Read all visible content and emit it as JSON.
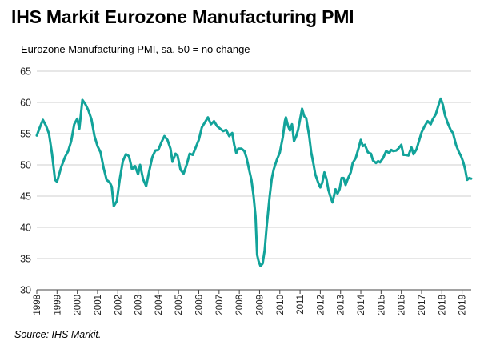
{
  "title": "IHS Markit Eurozone Manufacturing PMI",
  "subtitle": "Eurozone Manufacturing PMI, sa, 50 = no change",
  "source": "Source: IHS Markit.",
  "chart_data": {
    "type": "line",
    "title": "IHS Markit Eurozone Manufacturing PMI",
    "subtitle": "Eurozone Manufacturing PMI, sa, 50 = no change",
    "xlabel": "",
    "ylabel": "",
    "xlim": [
      1998.0,
      2019.45
    ],
    "ylim": [
      30,
      65
    ],
    "yticks": [
      30,
      35,
      40,
      45,
      50,
      55,
      60,
      65
    ],
    "xticks": [
      "1998",
      "1999",
      "2000",
      "2001",
      "2002",
      "2003",
      "2004",
      "2005",
      "2006",
      "2007",
      "2008",
      "2009",
      "2010",
      "2011",
      "2012",
      "2013",
      "2014",
      "2015",
      "2016",
      "2017",
      "2018",
      "2019"
    ],
    "grid": "horizontal",
    "line_color": "#12a39a",
    "series": [
      {
        "name": "",
        "points": [
          [
            1998.0,
            54.7
          ],
          [
            1998.15,
            56.0
          ],
          [
            1998.3,
            57.2
          ],
          [
            1998.45,
            56.3
          ],
          [
            1998.6,
            55.0
          ],
          [
            1998.75,
            51.8
          ],
          [
            1998.9,
            47.6
          ],
          [
            1999.0,
            47.3
          ],
          [
            1999.2,
            49.6
          ],
          [
            1999.4,
            51.3
          ],
          [
            1999.55,
            52.2
          ],
          [
            1999.7,
            53.8
          ],
          [
            1999.85,
            56.5
          ],
          [
            2000.0,
            57.4
          ],
          [
            2000.1,
            55.8
          ],
          [
            2000.25,
            60.4
          ],
          [
            2000.4,
            59.7
          ],
          [
            2000.55,
            58.7
          ],
          [
            2000.7,
            57.3
          ],
          [
            2000.85,
            54.6
          ],
          [
            2001.0,
            53.0
          ],
          [
            2001.15,
            52.0
          ],
          [
            2001.3,
            49.5
          ],
          [
            2001.45,
            47.6
          ],
          [
            2001.6,
            47.2
          ],
          [
            2001.7,
            46.5
          ],
          [
            2001.8,
            43.4
          ],
          [
            2001.95,
            44.2
          ],
          [
            2002.1,
            47.8
          ],
          [
            2002.25,
            50.6
          ],
          [
            2002.4,
            51.7
          ],
          [
            2002.55,
            51.4
          ],
          [
            2002.7,
            49.3
          ],
          [
            2002.85,
            49.8
          ],
          [
            2003.0,
            48.5
          ],
          [
            2003.1,
            50.0
          ],
          [
            2003.25,
            47.7
          ],
          [
            2003.4,
            46.6
          ],
          [
            2003.55,
            49.0
          ],
          [
            2003.7,
            51.2
          ],
          [
            2003.85,
            52.3
          ],
          [
            2004.0,
            52.4
          ],
          [
            2004.15,
            53.6
          ],
          [
            2004.3,
            54.6
          ],
          [
            2004.45,
            54.0
          ],
          [
            2004.6,
            52.6
          ],
          [
            2004.7,
            50.5
          ],
          [
            2004.85,
            51.8
          ],
          [
            2004.95,
            51.5
          ],
          [
            2005.1,
            49.2
          ],
          [
            2005.25,
            48.6
          ],
          [
            2005.4,
            50.0
          ],
          [
            2005.55,
            51.8
          ],
          [
            2005.7,
            51.6
          ],
          [
            2005.85,
            52.8
          ],
          [
            2006.0,
            54.0
          ],
          [
            2006.15,
            56.0
          ],
          [
            2006.3,
            56.8
          ],
          [
            2006.45,
            57.6
          ],
          [
            2006.6,
            56.5
          ],
          [
            2006.75,
            57.0
          ],
          [
            2006.9,
            56.2
          ],
          [
            2007.05,
            55.8
          ],
          [
            2007.2,
            55.4
          ],
          [
            2007.35,
            55.6
          ],
          [
            2007.5,
            54.6
          ],
          [
            2007.65,
            55.1
          ],
          [
            2007.75,
            53.2
          ],
          [
            2007.85,
            51.9
          ],
          [
            2007.95,
            52.6
          ],
          [
            2008.1,
            52.6
          ],
          [
            2008.25,
            52.2
          ],
          [
            2008.35,
            51.2
          ],
          [
            2008.5,
            49.0
          ],
          [
            2008.6,
            47.6
          ],
          [
            2008.7,
            45.1
          ],
          [
            2008.8,
            41.8
          ],
          [
            2008.88,
            35.6
          ],
          [
            2008.95,
            34.6
          ],
          [
            2009.05,
            33.8
          ],
          [
            2009.15,
            34.2
          ],
          [
            2009.25,
            36.3
          ],
          [
            2009.35,
            40.1
          ],
          [
            2009.5,
            45.0
          ],
          [
            2009.6,
            47.8
          ],
          [
            2009.7,
            49.3
          ],
          [
            2009.85,
            50.8
          ],
          [
            2010.0,
            52.0
          ],
          [
            2010.15,
            54.5
          ],
          [
            2010.25,
            57.0
          ],
          [
            2010.3,
            57.6
          ],
          [
            2010.4,
            56.3
          ],
          [
            2010.5,
            55.5
          ],
          [
            2010.6,
            56.5
          ],
          [
            2010.7,
            53.8
          ],
          [
            2010.8,
            54.5
          ],
          [
            2010.9,
            55.6
          ],
          [
            2011.0,
            57.3
          ],
          [
            2011.1,
            59.0
          ],
          [
            2011.2,
            57.8
          ],
          [
            2011.3,
            57.5
          ],
          [
            2011.45,
            54.6
          ],
          [
            2011.55,
            52.0
          ],
          [
            2011.65,
            50.4
          ],
          [
            2011.75,
            48.5
          ],
          [
            2011.9,
            47.1
          ],
          [
            2012.0,
            46.4
          ],
          [
            2012.1,
            47.2
          ],
          [
            2012.2,
            48.8
          ],
          [
            2012.3,
            47.8
          ],
          [
            2012.4,
            46.0
          ],
          [
            2012.5,
            44.9
          ],
          [
            2012.6,
            44.0
          ],
          [
            2012.75,
            46.1
          ],
          [
            2012.85,
            45.4
          ],
          [
            2012.95,
            46.1
          ],
          [
            2013.05,
            47.9
          ],
          [
            2013.15,
            47.9
          ],
          [
            2013.25,
            46.8
          ],
          [
            2013.35,
            47.7
          ],
          [
            2013.5,
            48.8
          ],
          [
            2013.6,
            50.3
          ],
          [
            2013.75,
            51.1
          ],
          [
            2013.9,
            52.8
          ],
          [
            2014.0,
            54.0
          ],
          [
            2014.1,
            53.0
          ],
          [
            2014.2,
            53.2
          ],
          [
            2014.35,
            52.0
          ],
          [
            2014.5,
            51.8
          ],
          [
            2014.6,
            50.7
          ],
          [
            2014.75,
            50.3
          ],
          [
            2014.85,
            50.6
          ],
          [
            2014.95,
            50.4
          ],
          [
            2015.1,
            51.1
          ],
          [
            2015.25,
            52.2
          ],
          [
            2015.4,
            51.9
          ],
          [
            2015.5,
            52.4
          ],
          [
            2015.6,
            52.2
          ],
          [
            2015.75,
            52.3
          ],
          [
            2015.85,
            52.6
          ],
          [
            2016.0,
            53.2
          ],
          [
            2016.1,
            51.6
          ],
          [
            2016.2,
            51.6
          ],
          [
            2016.35,
            51.5
          ],
          [
            2016.5,
            52.8
          ],
          [
            2016.6,
            51.7
          ],
          [
            2016.75,
            52.5
          ],
          [
            2016.85,
            53.6
          ],
          [
            2017.0,
            55.2
          ],
          [
            2017.15,
            56.2
          ],
          [
            2017.3,
            57.0
          ],
          [
            2017.45,
            56.5
          ],
          [
            2017.55,
            57.3
          ],
          [
            2017.7,
            58.1
          ],
          [
            2017.85,
            59.7
          ],
          [
            2017.95,
            60.6
          ],
          [
            2018.05,
            59.6
          ],
          [
            2018.15,
            58.0
          ],
          [
            2018.3,
            56.6
          ],
          [
            2018.45,
            55.5
          ],
          [
            2018.55,
            55.1
          ],
          [
            2018.7,
            53.2
          ],
          [
            2018.85,
            52.0
          ],
          [
            2018.95,
            51.4
          ],
          [
            2019.05,
            50.5
          ],
          [
            2019.15,
            49.3
          ],
          [
            2019.25,
            47.6
          ],
          [
            2019.35,
            47.9
          ],
          [
            2019.45,
            47.8
          ]
        ]
      }
    ]
  }
}
